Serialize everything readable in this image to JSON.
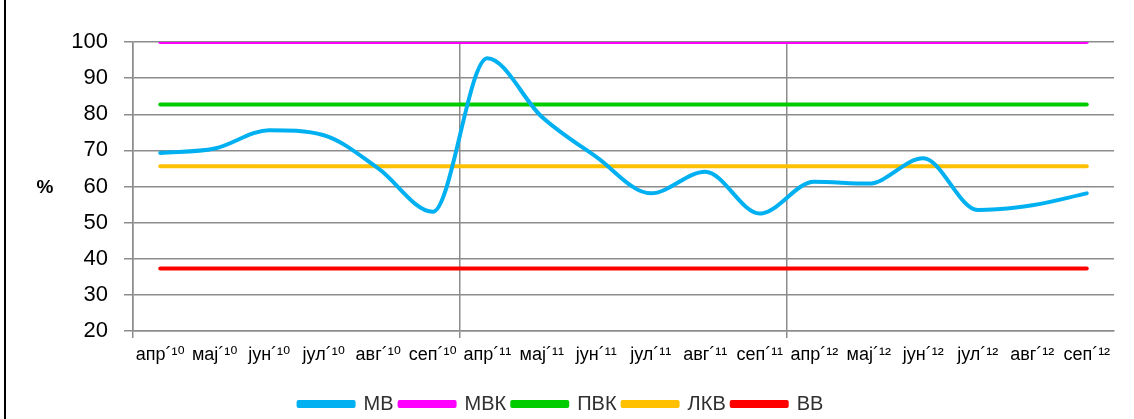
{
  "chart_data": {
    "type": "line",
    "ylabel": "%",
    "categories": [
      "апр´¹⁰",
      "мај´¹⁰",
      "јун´¹⁰",
      "јул´¹⁰",
      "авг´¹⁰",
      "сеп´¹⁰",
      "апр´¹¹",
      "мај´¹¹",
      "јун´¹¹",
      "јул´¹¹",
      "авг´¹¹",
      "сеп´¹¹",
      "апр´¹²",
      "мај´¹²",
      "јун´¹²",
      "јул´¹²",
      "авг´¹²",
      "сеп´¹²"
    ],
    "series": [
      {
        "name": "МВ",
        "color": "#00b0f0",
        "values": [
          69.3,
          70.5,
          75.6,
          74.2,
          65,
          53,
          95.5,
          79.3,
          68.2,
          58.1,
          64.1,
          52.5,
          61.3,
          60.8,
          67.8,
          53.5,
          54.8,
          58.1
        ]
      },
      {
        "name": "МВК",
        "color": "#ff00ff",
        "values": [
          100,
          100,
          100,
          100,
          100,
          100,
          100,
          100,
          100,
          100,
          100,
          100,
          100,
          100,
          100,
          100,
          100,
          100
        ]
      },
      {
        "name": "ПВК",
        "color": "#00cc00",
        "values": [
          82.7,
          82.7,
          82.7,
          82.7,
          82.7,
          82.7,
          82.7,
          82.7,
          82.7,
          82.7,
          82.7,
          82.7,
          82.7,
          82.7,
          82.7,
          82.7,
          82.7,
          82.7
        ]
      },
      {
        "name": "ЛКВ",
        "color": "#ffc000",
        "values": [
          65.6,
          65.6,
          65.6,
          65.6,
          65.6,
          65.6,
          65.6,
          65.6,
          65.6,
          65.6,
          65.6,
          65.6,
          65.6,
          65.6,
          65.6,
          65.6,
          65.6,
          65.6
        ]
      },
      {
        "name": "ВВ",
        "color": "#ff0000",
        "values": [
          37.3,
          37.3,
          37.3,
          37.3,
          37.3,
          37.3,
          37.3,
          37.3,
          37.3,
          37.3,
          37.3,
          37.3,
          37.3,
          37.3,
          37.3,
          37.3,
          37.3,
          37.3
        ]
      }
    ],
    "ylim": [
      20,
      100
    ],
    "yticks": [
      20,
      30,
      40,
      50,
      60,
      70,
      80,
      90,
      100
    ],
    "grid": true,
    "legend": "bottom",
    "marker": "none",
    "line_style": "solid"
  }
}
